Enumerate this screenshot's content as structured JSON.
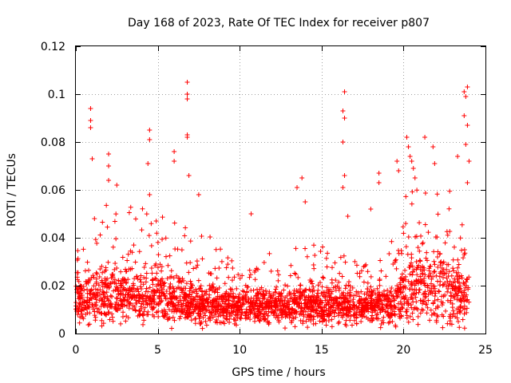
{
  "chart_data": {
    "type": "scatter",
    "title": "Day 168 of 2023, Rate Of TEC Index for receiver p807",
    "xlabel": "GPS time / hours",
    "ylabel": "ROTI / TECUs",
    "xlim": [
      0,
      25
    ],
    "ylim": [
      0,
      0.12
    ],
    "xticks": [
      0,
      5,
      10,
      15,
      20,
      25
    ],
    "xtick_labels": [
      "0",
      "5",
      "10",
      "15",
      "20",
      "25"
    ],
    "yticks": [
      0,
      0.02,
      0.04,
      0.06,
      0.08,
      0.1,
      0.12
    ],
    "ytick_labels": [
      "0",
      "0.02",
      "0.04",
      "0.06",
      "0.08",
      "0.1",
      "0.12"
    ],
    "grid": true,
    "marker": "plus",
    "color": "#ff0000",
    "baseline_profile": {
      "hours": [
        0,
        2,
        4,
        6,
        8,
        10,
        12,
        14,
        16,
        18,
        19.5,
        20.5,
        22,
        24
      ],
      "median": [
        0.014,
        0.016,
        0.015,
        0.014,
        0.012,
        0.011,
        0.011,
        0.012,
        0.012,
        0.011,
        0.012,
        0.02,
        0.02,
        0.017
      ],
      "spread": [
        0.008,
        0.01,
        0.01,
        0.009,
        0.007,
        0.006,
        0.006,
        0.007,
        0.007,
        0.006,
        0.007,
        0.014,
        0.014,
        0.012
      ]
    },
    "high_points": [
      {
        "x": 0.9,
        "y": 0.094
      },
      {
        "x": 0.9,
        "y": 0.089
      },
      {
        "x": 0.9,
        "y": 0.086
      },
      {
        "x": 1.0,
        "y": 0.073
      },
      {
        "x": 2.0,
        "y": 0.075
      },
      {
        "x": 2.0,
        "y": 0.07
      },
      {
        "x": 2.0,
        "y": 0.064
      },
      {
        "x": 2.5,
        "y": 0.062
      },
      {
        "x": 4.5,
        "y": 0.085
      },
      {
        "x": 4.5,
        "y": 0.081
      },
      {
        "x": 4.4,
        "y": 0.071
      },
      {
        "x": 4.5,
        "y": 0.058
      },
      {
        "x": 6.0,
        "y": 0.076
      },
      {
        "x": 6.0,
        "y": 0.072
      },
      {
        "x": 6.8,
        "y": 0.105
      },
      {
        "x": 6.8,
        "y": 0.1
      },
      {
        "x": 6.8,
        "y": 0.098
      },
      {
        "x": 6.8,
        "y": 0.083
      },
      {
        "x": 6.8,
        "y": 0.082
      },
      {
        "x": 6.9,
        "y": 0.066
      },
      {
        "x": 7.5,
        "y": 0.058
      },
      {
        "x": 10.7,
        "y": 0.05
      },
      {
        "x": 13.5,
        "y": 0.061
      },
      {
        "x": 13.8,
        "y": 0.065
      },
      {
        "x": 14.0,
        "y": 0.055
      },
      {
        "x": 16.4,
        "y": 0.101
      },
      {
        "x": 16.3,
        "y": 0.093
      },
      {
        "x": 16.4,
        "y": 0.09
      },
      {
        "x": 16.3,
        "y": 0.08
      },
      {
        "x": 16.4,
        "y": 0.066
      },
      {
        "x": 16.3,
        "y": 0.061
      },
      {
        "x": 16.6,
        "y": 0.049
      },
      {
        "x": 18.0,
        "y": 0.052
      },
      {
        "x": 18.5,
        "y": 0.067
      },
      {
        "x": 18.5,
        "y": 0.063
      },
      {
        "x": 19.6,
        "y": 0.072
      },
      {
        "x": 19.7,
        "y": 0.068
      },
      {
        "x": 20.2,
        "y": 0.082
      },
      {
        "x": 20.3,
        "y": 0.078
      },
      {
        "x": 20.4,
        "y": 0.074
      },
      {
        "x": 20.5,
        "y": 0.072
      },
      {
        "x": 20.6,
        "y": 0.069
      },
      {
        "x": 20.7,
        "y": 0.065
      },
      {
        "x": 21.3,
        "y": 0.082
      },
      {
        "x": 21.8,
        "y": 0.078
      },
      {
        "x": 21.9,
        "y": 0.071
      },
      {
        "x": 23.3,
        "y": 0.074
      },
      {
        "x": 23.7,
        "y": 0.101
      },
      {
        "x": 23.9,
        "y": 0.103
      },
      {
        "x": 23.8,
        "y": 0.099
      },
      {
        "x": 23.7,
        "y": 0.091
      },
      {
        "x": 23.9,
        "y": 0.087
      },
      {
        "x": 23.8,
        "y": 0.079
      },
      {
        "x": 24.0,
        "y": 0.072
      },
      {
        "x": 23.9,
        "y": 0.063
      }
    ]
  }
}
